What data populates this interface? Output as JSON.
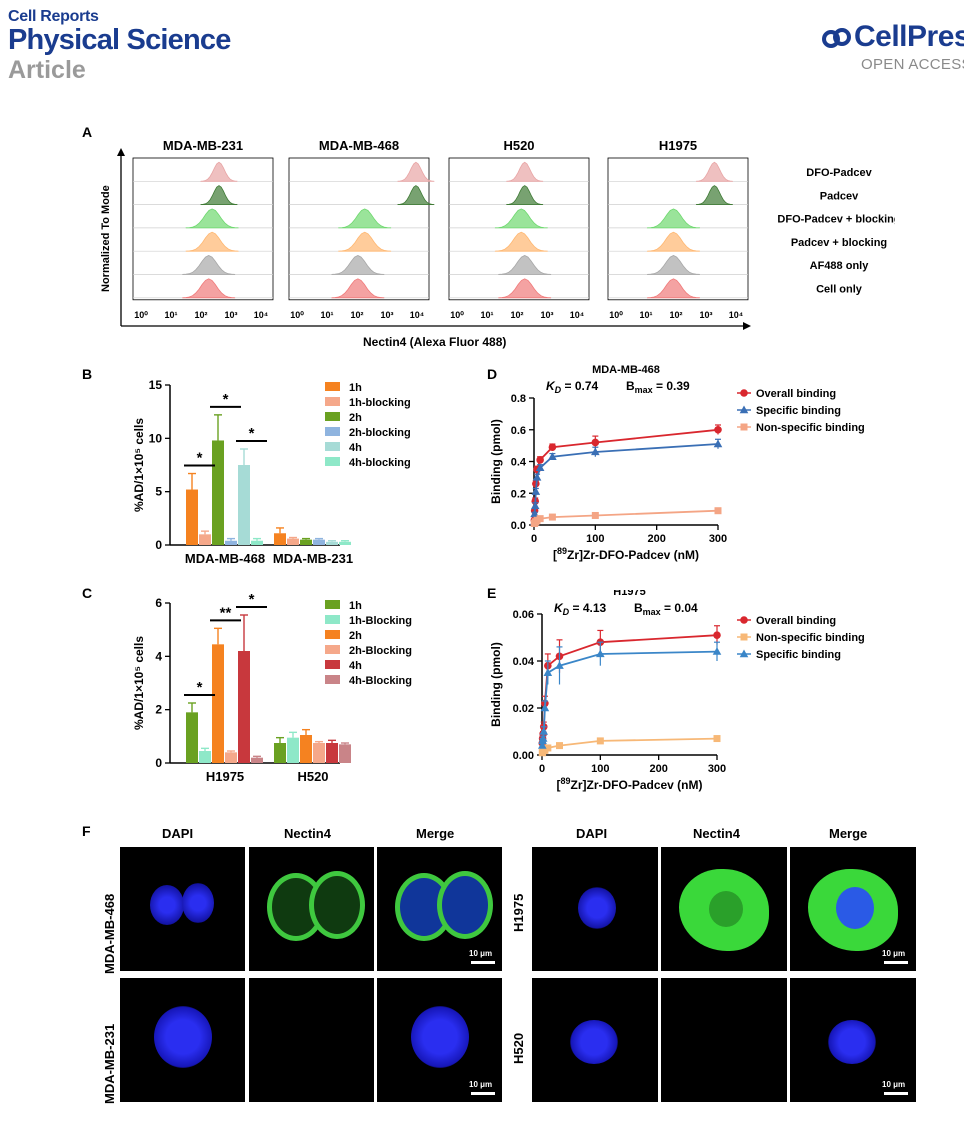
{
  "header": {
    "journal_line1": "Cell Reports",
    "journal_line2": "Physical Science",
    "article_type": "Article",
    "brand": "CellPress",
    "brand_sub": "OPEN ACCESS"
  },
  "panel_labels": {
    "a": "A",
    "b": "B",
    "c": "C",
    "d": "D",
    "e": "E",
    "f": "F"
  },
  "panelA": {
    "cell_lines": [
      "MDA-MB-231",
      "MDA-MB-468",
      "H520",
      "H1975"
    ],
    "conditions": [
      "DFO-Padcev",
      "Padcev",
      "DFO-Padcev + blocking",
      "Padcev + blocking",
      "AF488 only",
      "Cell only"
    ],
    "condition_colors": [
      "#e8a5a5",
      "#3f7a35",
      "#6fd86f",
      "#ffb770",
      "#a8a8a8",
      "#f07a7a"
    ],
    "peak_log": [
      [
        2.4,
        2.4,
        2.2,
        2.2,
        2.1,
        2.1
      ],
      [
        3.6,
        3.6,
        2.1,
        2.1,
        1.9,
        1.9
      ],
      [
        2.1,
        2.1,
        2.0,
        2.0,
        2.1,
        2.1
      ],
      [
        3.0,
        3.0,
        1.8,
        1.8,
        1.8,
        1.8
      ]
    ],
    "tick_labels": [
      "10⁰",
      "10¹",
      "10²",
      "10³",
      "10⁴"
    ],
    "ylabel": "Normalized To Mode",
    "xlabel": "Nectin4 (Alexa Fluor 488)"
  },
  "chart_data": [
    {
      "type": "bar",
      "id": "B",
      "ylabel": "%AD/1×10⁵ cells",
      "ylim": [
        0,
        15
      ],
      "yticks": [
        "0",
        "5",
        "10",
        "15"
      ],
      "categories": [
        "MDA-MB-468",
        "MDA-MB-231"
      ],
      "series": [
        {
          "name": "1h",
          "color": "#f58220",
          "values": [
            5.2,
            1.1
          ],
          "errors": [
            1.5,
            0.5
          ]
        },
        {
          "name": "1h-blocking",
          "color": "#f5a88a",
          "values": [
            1.0,
            0.6
          ],
          "errors": [
            0.3,
            0.1
          ]
        },
        {
          "name": "2h",
          "color": "#6aa121",
          "values": [
            9.8,
            0.5
          ],
          "errors": [
            2.4,
            0.1
          ]
        },
        {
          "name": "2h-blocking",
          "color": "#8fb4df",
          "values": [
            0.4,
            0.5
          ],
          "errors": [
            0.2,
            0.1
          ]
        },
        {
          "name": "4h",
          "color": "#a6dbd6",
          "values": [
            7.5,
            0.3
          ],
          "errors": [
            1.5,
            0.1
          ]
        },
        {
          "name": "4h-blocking",
          "color": "#8ee8c8",
          "values": [
            0.4,
            0.3
          ],
          "errors": [
            0.2,
            0.1
          ]
        }
      ],
      "significance": [
        {
          "label": "*",
          "pair": [
            0,
            1
          ]
        },
        {
          "label": "*",
          "pair": [
            2,
            3
          ]
        },
        {
          "label": "*",
          "pair": [
            4,
            5
          ]
        }
      ]
    },
    {
      "type": "bar",
      "id": "C",
      "ylabel": "%AD/1×10⁵ cells",
      "ylim": [
        0,
        6
      ],
      "yticks": [
        "0",
        "2",
        "4",
        "6"
      ],
      "categories": [
        "H1975",
        "H520"
      ],
      "series": [
        {
          "name": "1h",
          "color": "#6aa121",
          "values": [
            1.9,
            0.75
          ],
          "errors": [
            0.35,
            0.2
          ]
        },
        {
          "name": "1h-Blocking",
          "color": "#8ee8c8",
          "values": [
            0.45,
            0.95
          ],
          "errors": [
            0.1,
            0.2
          ]
        },
        {
          "name": "2h",
          "color": "#f58220",
          "values": [
            4.45,
            1.05
          ],
          "errors": [
            0.6,
            0.2
          ]
        },
        {
          "name": "2h-Blocking",
          "color": "#f5a88a",
          "values": [
            0.4,
            0.75
          ],
          "errors": [
            0.05,
            0.05
          ]
        },
        {
          "name": "4h",
          "color": "#c8383d",
          "values": [
            4.2,
            0.75
          ],
          "errors": [
            1.35,
            0.1
          ]
        },
        {
          "name": "4h-Blocking",
          "color": "#c98488",
          "values": [
            0.2,
            0.7
          ],
          "errors": [
            0.05,
            0.05
          ]
        }
      ],
      "significance": [
        {
          "label": "*",
          "pair": [
            0,
            1
          ]
        },
        {
          "label": "**",
          "pair": [
            2,
            3
          ]
        },
        {
          "label": "*",
          "pair": [
            4,
            5
          ]
        }
      ]
    },
    {
      "type": "scatter",
      "id": "D",
      "title": "MDA-MB-468",
      "kd_label": "K",
      "kd_sub": "D",
      "kd_text": "= 0.74",
      "bmax_label": "B",
      "bmax_sub": "max",
      "bmax_text": "= 0.39",
      "xlabel_pre": "[",
      "xlabel_sup": "89",
      "xlabel_post": "Zr]Zr-DFO-Padcev (nM)",
      "ylabel": "Binding (pmol)",
      "xlim": [
        0,
        300
      ],
      "ylim": [
        0,
        0.8
      ],
      "xticks": [
        "0",
        "100",
        "200",
        "300"
      ],
      "yticks": [
        "0.0",
        "0.2",
        "0.4",
        "0.6",
        "0.8"
      ],
      "x": [
        0.5,
        1,
        2,
        3,
        5,
        10,
        30,
        100,
        300
      ],
      "series": [
        {
          "name": "Overall binding",
          "color": "#d9272e",
          "marker": "circle",
          "values": [
            0.03,
            0.09,
            0.15,
            0.26,
            0.35,
            0.41,
            0.49,
            0.52,
            0.6
          ],
          "errors": [
            0.01,
            0.01,
            0.02,
            0.02,
            0.02,
            0.02,
            0.02,
            0.04,
            0.03
          ]
        },
        {
          "name": "Specific binding",
          "color": "#3a6fb5",
          "marker": "triangle",
          "values": [
            0.02,
            0.07,
            0.12,
            0.21,
            0.3,
            0.36,
            0.43,
            0.46,
            0.51
          ],
          "errors": [
            0.01,
            0.01,
            0.02,
            0.02,
            0.02,
            0.02,
            0.02,
            0.03,
            0.03
          ]
        },
        {
          "name": "Non-specific binding",
          "color": "#f4a585",
          "marker": "square",
          "values": [
            0.01,
            0.01,
            0.02,
            0.02,
            0.03,
            0.04,
            0.05,
            0.06,
            0.09
          ],
          "errors": [
            0,
            0,
            0,
            0,
            0,
            0,
            0,
            0.01,
            0.01
          ]
        }
      ]
    },
    {
      "type": "scatter",
      "id": "E",
      "title": "H1975",
      "kd_label": "K",
      "kd_sub": "D",
      "kd_text": "= 4.13",
      "bmax_label": "B",
      "bmax_sub": "max",
      "bmax_text": "= 0.04",
      "xlabel_pre": "[",
      "xlabel_sup": "89",
      "xlabel_post": "Zr]Zr-DFO-Padcev (nM)",
      "ylabel": "Binding (pmol)",
      "xlim": [
        0,
        300
      ],
      "ylim": [
        0,
        0.06
      ],
      "xticks": [
        "0",
        "100",
        "200",
        "300"
      ],
      "yticks": [
        "0.00",
        "0.02",
        "0.04",
        "0.06"
      ],
      "x": [
        0.5,
        1,
        2,
        3,
        5,
        10,
        30,
        100,
        300
      ],
      "series": [
        {
          "name": "Overall binding",
          "color": "#d9272e",
          "marker": "circle",
          "values": [
            0.005,
            0.007,
            0.009,
            0.012,
            0.022,
            0.038,
            0.042,
            0.048,
            0.051
          ],
          "errors": [
            0.001,
            0.001,
            0.001,
            0.002,
            0.003,
            0.005,
            0.007,
            0.005,
            0.004
          ]
        },
        {
          "name": "Non-specific binding",
          "color": "#f7b877",
          "marker": "square",
          "values": [
            0.001,
            0.001,
            0.002,
            0.002,
            0.002,
            0.003,
            0.004,
            0.006,
            0.007
          ],
          "errors": [
            0,
            0,
            0,
            0,
            0,
            0,
            0,
            0,
            0
          ]
        },
        {
          "name": "Specific binding",
          "color": "#3a86c8",
          "marker": "triangle",
          "values": [
            0.004,
            0.006,
            0.007,
            0.01,
            0.02,
            0.035,
            0.038,
            0.043,
            0.044
          ],
          "errors": [
            0.001,
            0.001,
            0.001,
            0.002,
            0.003,
            0.005,
            0.008,
            0.005,
            0.004
          ]
        }
      ]
    }
  ],
  "panelF": {
    "col_headers": [
      "DAPI",
      "Nectin4",
      "Merge"
    ],
    "row_labels_left": [
      "MDA-MB-468",
      "MDA-MB-231"
    ],
    "row_labels_right": [
      "H1975",
      "H520"
    ],
    "scalebar": "10 μm"
  }
}
